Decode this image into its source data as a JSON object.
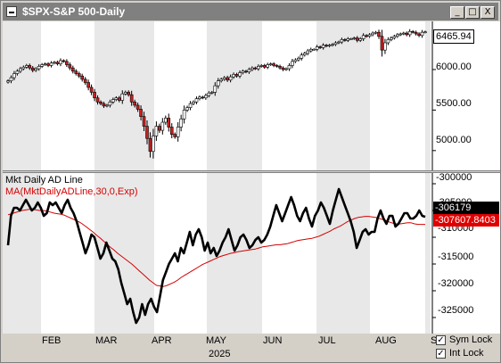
{
  "window": {
    "title": "$SPX-S&P 500-Daily",
    "buttons": {
      "minimize": "_",
      "maximize": "□",
      "close": "X"
    }
  },
  "price_panel": {
    "last_value": "6465.94",
    "y_ticks": [
      "6000.00",
      "5500.00",
      "5000.00"
    ]
  },
  "ad_panel": {
    "indicator_label": "Mkt Daily AD Line",
    "ma_label": "MA(MktDailyADLine,30,0,Exp)",
    "last_value": "-306179",
    "ma_last_value": "-307607.8403",
    "y_ticks": [
      "-300000",
      "-305000",
      "-310000",
      "-315000",
      "-320000",
      "-325000"
    ]
  },
  "time_axis": {
    "months": [
      "FEB",
      "MAR",
      "APR",
      "MAY",
      "JUN",
      "JUL",
      "AUG",
      "S"
    ],
    "year": "2025"
  },
  "options": {
    "sym_lock_label": "Sym Lock",
    "int_lock_label": "Int Lock",
    "check_mark": "✓"
  },
  "colors": {
    "up_candle": "#ffffff",
    "down_candle": "#cc2020",
    "ad_line": "#000000",
    "ma_line": "#d40000",
    "shade": "#e8e8e8"
  },
  "chart_data": [
    {
      "type": "candlestick",
      "title": "$SPX-S&P 500-Daily",
      "ylim": [
        4800,
        6550
      ],
      "y_ticks": [
        5000,
        5500,
        6000
      ],
      "x_ticks": [
        "FEB",
        "MAR",
        "APR",
        "MAY",
        "JUN",
        "JUL",
        "AUG",
        "S"
      ],
      "close": [
        5860,
        5900,
        5950,
        5980,
        6010,
        6030,
        6050,
        6020,
        5990,
        6010,
        6040,
        6060,
        6070,
        6050,
        6080,
        6090,
        6070,
        6110,
        6100,
        6060,
        6020,
        5980,
        5950,
        5920,
        5880,
        5840,
        5780,
        5720,
        5650,
        5600,
        5580,
        5550,
        5560,
        5600,
        5630,
        5650,
        5620,
        5700,
        5720,
        5690,
        5600,
        5560,
        5510,
        5420,
        5300,
        5150,
        4990,
        5180,
        5300,
        5250,
        5350,
        5400,
        5290,
        5200,
        5170,
        5290,
        5390,
        5500,
        5530,
        5580,
        5600,
        5640,
        5660,
        5650,
        5680,
        5710,
        5720,
        5800,
        5860,
        5880,
        5900,
        5870,
        5910,
        5940,
        5920,
        5960,
        5980,
        5970,
        6000,
        6020,
        6010,
        6040,
        6050,
        6030,
        6060,
        6070,
        6050,
        6040,
        6020,
        6000,
        6010,
        6050,
        6100,
        6120,
        6140,
        6180,
        6200,
        6230,
        6250,
        6250,
        6280,
        6270,
        6300,
        6290,
        6300,
        6310,
        6330,
        6340,
        6370,
        6360,
        6380,
        6380,
        6390,
        6360,
        6380,
        6420,
        6410,
        6430,
        6450,
        6460,
        6410,
        6240,
        6330,
        6370,
        6390,
        6410,
        6430,
        6440,
        6450,
        6430,
        6470,
        6460,
        6440,
        6420,
        6460,
        6465.94
      ]
    },
    {
      "type": "line",
      "series": [
        {
          "name": "Mkt Daily AD Line",
          "values": [
            -311500,
            -306000,
            -304500,
            -304500,
            -305000,
            -304000,
            -303000,
            -304000,
            -305000,
            -304500,
            -303500,
            -304500,
            -306000,
            -305500,
            -303500,
            -304000,
            -303500,
            -304500,
            -305500,
            -304000,
            -303000,
            -304500,
            -305500,
            -307000,
            -309000,
            -311000,
            -313000,
            -311500,
            -309500,
            -310000,
            -312000,
            -314000,
            -313000,
            -311000,
            -312500,
            -314000,
            -314500,
            -316000,
            -318500,
            -320500,
            -322500,
            -321500,
            -324000,
            -326000,
            -325000,
            -322500,
            -324500,
            -322500,
            -321500,
            -323000,
            -324000,
            -321000,
            -318000,
            -316500,
            -315000,
            -314000,
            -313000,
            -314500,
            -312000,
            -313000,
            -311000,
            -309000,
            -311500,
            -309500,
            -308500,
            -310000,
            -312500,
            -311000,
            -313000,
            -312000,
            -313500,
            -312500,
            -311000,
            -310000,
            -308500,
            -310500,
            -312500,
            -311500,
            -310000,
            -309500,
            -310500,
            -312000,
            -311500,
            -310500,
            -310000,
            -311000,
            -310500,
            -309500,
            -308000,
            -306000,
            -304000,
            -305500,
            -307000,
            -305500,
            -304000,
            -302500,
            -304000,
            -306000,
            -307000,
            -305500,
            -304500,
            -306500,
            -308000,
            -306000,
            -305000,
            -303500,
            -304500,
            -306000,
            -307500,
            -305000,
            -303000,
            -301000,
            -302500,
            -304000,
            -305500,
            -307000,
            -309000,
            -312000,
            -310500,
            -309000,
            -308500,
            -309500,
            -309000,
            -309000,
            -306500,
            -305000,
            -306500,
            -307500,
            -306000,
            -306000,
            -308000,
            -307500,
            -306500,
            -305500,
            -305500,
            -306500,
            -306500,
            -306000,
            -305000,
            -306000,
            -306179
          ]
        },
        {
          "name": "MA(MktDailyADLine,30,0,Exp)",
          "values": [
            -305800,
            -305600,
            -305400,
            -305200,
            -305000,
            -304900,
            -304800,
            -304800,
            -304900,
            -305000,
            -305000,
            -305100,
            -305300,
            -305500,
            -305600,
            -305700,
            -305900,
            -306200,
            -306500,
            -306800,
            -307100,
            -307500,
            -308000,
            -308500,
            -309000,
            -309600,
            -310100,
            -310700,
            -311300,
            -311900,
            -312400,
            -313000,
            -313500,
            -314000,
            -314500,
            -315000,
            -315600,
            -316200,
            -316800,
            -317400,
            -318000,
            -318500,
            -319000,
            -319100,
            -319200,
            -319000,
            -318700,
            -318400,
            -318000,
            -317500,
            -317100,
            -316700,
            -316300,
            -315900,
            -315500,
            -315100,
            -314800,
            -314500,
            -314200,
            -313900,
            -313600,
            -313400,
            -313200,
            -313000,
            -312900,
            -312700,
            -312600,
            -312500,
            -312400,
            -312300,
            -312200,
            -312000,
            -311800,
            -311700,
            -311600,
            -311500,
            -311400,
            -311400,
            -311300,
            -311200,
            -311000,
            -310800,
            -310600,
            -310500,
            -310400,
            -310300,
            -310200,
            -310000,
            -309800,
            -309500,
            -309200,
            -308900,
            -308500,
            -308200,
            -307900,
            -307500,
            -307100,
            -306800,
            -306500,
            -306300,
            -306200,
            -306100,
            -306100,
            -306200,
            -306300,
            -306500,
            -306700,
            -306900,
            -307200,
            -307400,
            -307500,
            -307500,
            -307400,
            -307300,
            -307300,
            -307500,
            -307600,
            -307600,
            -307608
          ]
        }
      ],
      "ylim": [
        -328000,
        -298000
      ],
      "y_ticks": [
        -300000,
        -305000,
        -310000,
        -315000,
        -320000,
        -325000
      ]
    }
  ]
}
